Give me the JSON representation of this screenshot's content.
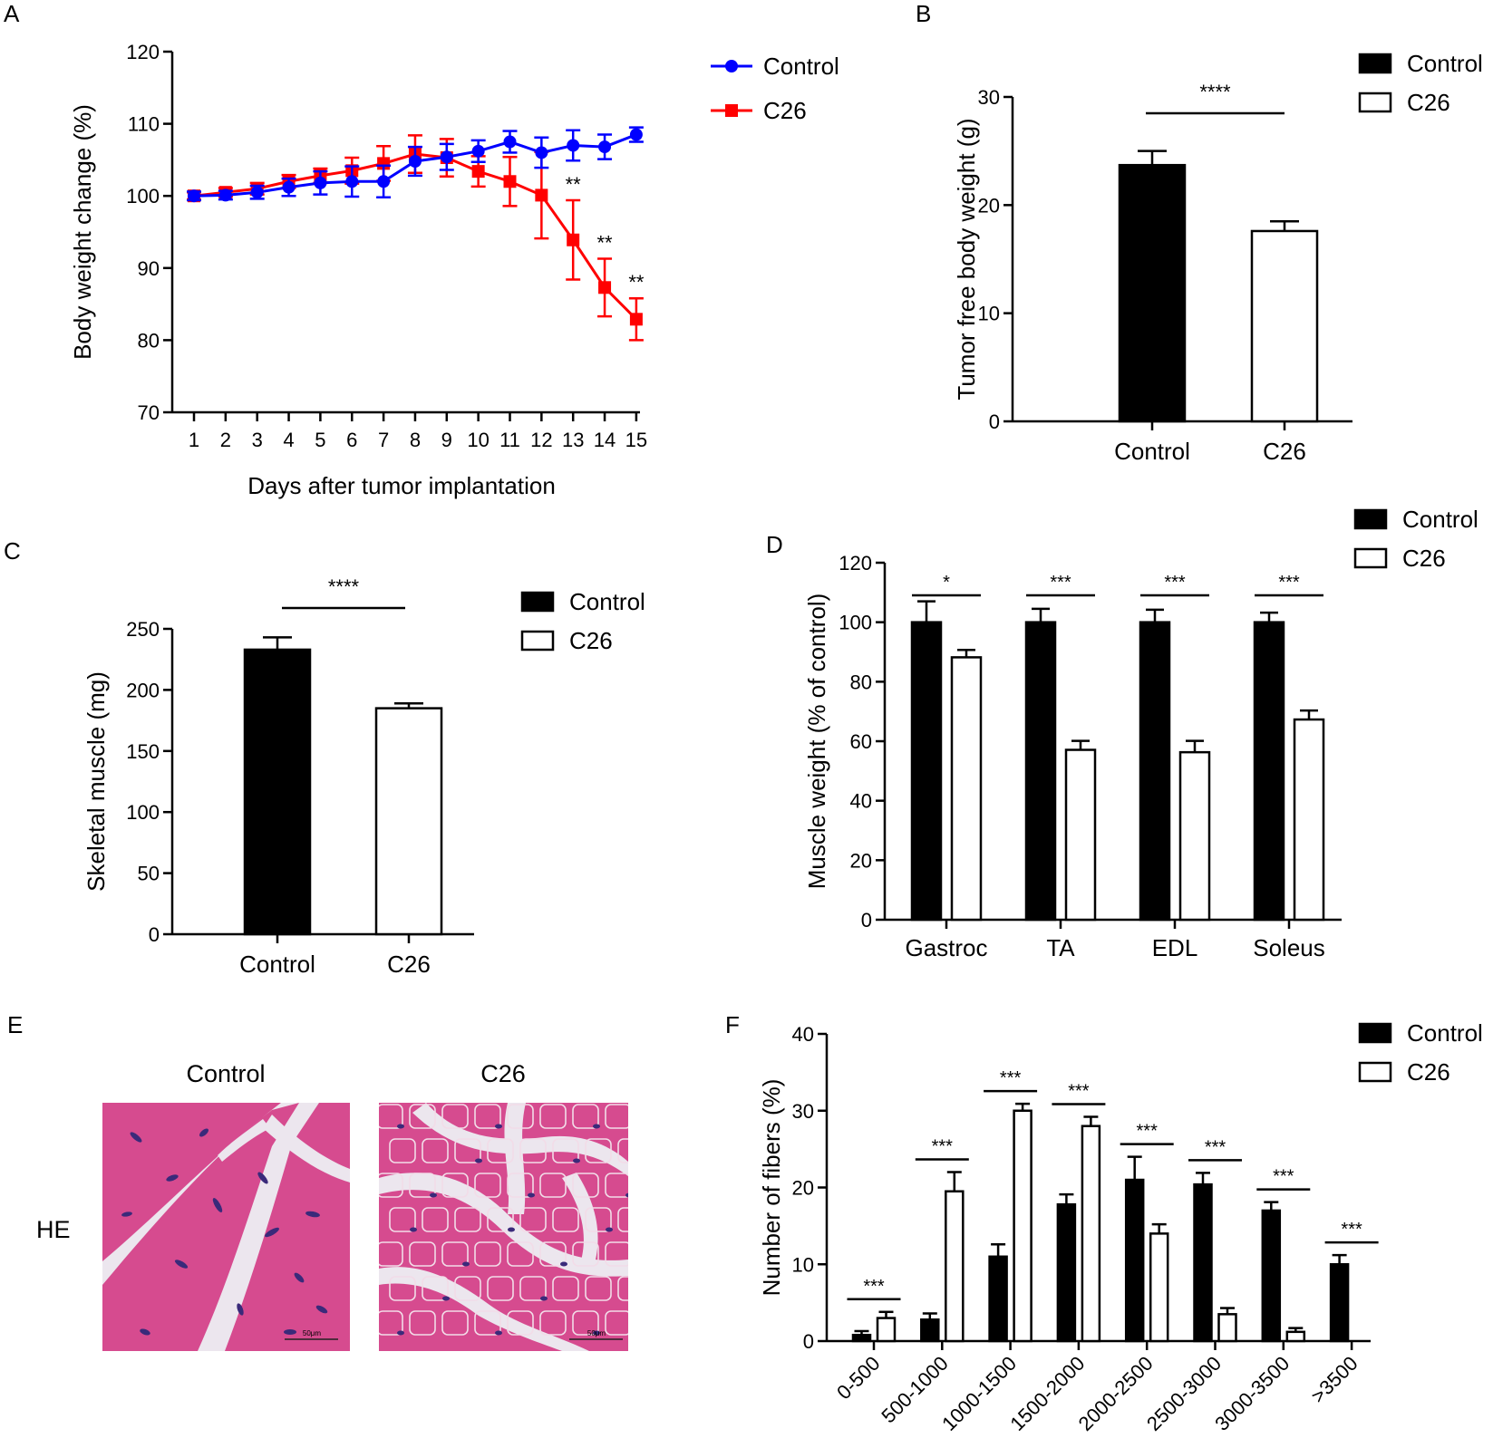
{
  "colors": {
    "control_line": "#0000ff",
    "c26_line": "#ff0000",
    "bar_control": "#000000",
    "bar_c26": "#ffffff",
    "he_tissue": "#d64b8f",
    "he_gap": "#ece6ee"
  },
  "chart_data": [
    {
      "id": "A",
      "panel_label": "A",
      "type": "line",
      "xlabel": "Days after tumor implantation",
      "ylabel": "Body weight change (%)",
      "ylim": [
        70,
        120
      ],
      "yticks": [
        "70",
        "80",
        "90",
        "100",
        "110",
        "120"
      ],
      "x": [
        "1",
        "2",
        "3",
        "4",
        "5",
        "6",
        "7",
        "8",
        "9",
        "10",
        "11",
        "12",
        "13",
        "14",
        "15"
      ],
      "legend": [
        "Control",
        "C26"
      ],
      "series": [
        {
          "name": "Control",
          "marker": "circle",
          "values": [
            100,
            100.1,
            100.5,
            101.2,
            101.8,
            102,
            102,
            104.8,
            105.4,
            106.2,
            107.5,
            106,
            107,
            106.8,
            108.5
          ],
          "errors": [
            0.6,
            0.6,
            0.9,
            1.2,
            1.6,
            2.1,
            2.2,
            2.0,
            1.8,
            1.5,
            1.5,
            2.1,
            2.1,
            1.7,
            1.0
          ]
        },
        {
          "name": "C26",
          "marker": "square",
          "values": [
            100,
            100.5,
            101,
            102,
            102.8,
            103.5,
            104.5,
            105.8,
            105.3,
            103.4,
            102,
            100.1,
            93.9,
            87.3,
            82.9
          ],
          "errors": [
            0.5,
            0.6,
            0.8,
            0.9,
            1.0,
            1.8,
            2.4,
            2.6,
            2.6,
            2.1,
            3.4,
            6.0,
            5.5,
            4.0,
            2.9
          ]
        }
      ],
      "annotations": [
        {
          "x": "13",
          "text": "**"
        },
        {
          "x": "14",
          "text": "**"
        },
        {
          "x": "15",
          "text": "**"
        }
      ]
    },
    {
      "id": "B",
      "panel_label": "B",
      "type": "bar",
      "ylabel": "Tumor free body weight (g)",
      "ylim": [
        0,
        30
      ],
      "yticks": [
        "0",
        "10",
        "20",
        "30"
      ],
      "categories": [
        "Control",
        "C26"
      ],
      "values": [
        23.7,
        17.6
      ],
      "errors": [
        1.3,
        0.9
      ],
      "legend": [
        "Control",
        "C26"
      ],
      "significance": "****"
    },
    {
      "id": "C",
      "panel_label": "C",
      "type": "bar",
      "ylabel": "Skeletal muscle (mg)",
      "ylim": [
        0,
        250
      ],
      "yticks": [
        "0",
        "50",
        "100",
        "150",
        "200",
        "250"
      ],
      "categories": [
        "Control",
        "C26"
      ],
      "values": [
        233,
        185
      ],
      "errors": [
        10,
        4
      ],
      "legend": [
        "Control",
        "C26"
      ],
      "significance": "****"
    },
    {
      "id": "D",
      "panel_label": "D",
      "type": "bar",
      "ylabel": "Muscle weight (% of control)",
      "ylim": [
        0,
        120
      ],
      "yticks": [
        "0",
        "20",
        "40",
        "60",
        "80",
        "100",
        "120"
      ],
      "categories": [
        "Gastroc",
        "TA",
        "EDL",
        "Soleus"
      ],
      "legend": [
        "Control",
        "C26"
      ],
      "series": [
        {
          "name": "Control",
          "values": [
            100,
            100,
            100,
            100
          ],
          "errors": [
            7,
            4.5,
            4.2,
            3.2
          ]
        },
        {
          "name": "C26",
          "values": [
            88.2,
            57.1,
            56.3,
            67.3
          ],
          "errors": [
            2.5,
            3,
            3.8,
            3
          ]
        }
      ],
      "significance": [
        "*",
        "***",
        "***",
        "***"
      ]
    },
    {
      "id": "F",
      "panel_label": "F",
      "type": "bar",
      "ylabel": "Number of fibers (%)",
      "ylim": [
        0,
        40
      ],
      "yticks": [
        "0",
        "10",
        "20",
        "30",
        "40"
      ],
      "categories": [
        "0-500",
        "500-1000",
        "1000-1500",
        "1500-2000",
        "2000-2500",
        "2500-3000",
        "3000-3500",
        ">3500"
      ],
      "legend": [
        "Control",
        "C26"
      ],
      "series": [
        {
          "name": "Control",
          "values": [
            0.8,
            2.8,
            11,
            17.8,
            21,
            20.4,
            17,
            10
          ],
          "errors": [
            0.5,
            0.8,
            1.6,
            1.3,
            3,
            1.5,
            1.1,
            1.2
          ]
        },
        {
          "name": "C26",
          "values": [
            3,
            19.5,
            30,
            28,
            14,
            3.5,
            1.2,
            0
          ],
          "errors": [
            0.8,
            2.5,
            0.9,
            1.2,
            1.2,
            0.8,
            0.5,
            0
          ]
        }
      ],
      "significance": [
        "***",
        "***",
        "***",
        "***",
        "***",
        "***",
        "***",
        "***"
      ]
    }
  ],
  "panel_e": {
    "panel_label": "E",
    "row_label": "HE",
    "columns": [
      "Control",
      "C26"
    ],
    "scale_bar_label": "50μm"
  }
}
